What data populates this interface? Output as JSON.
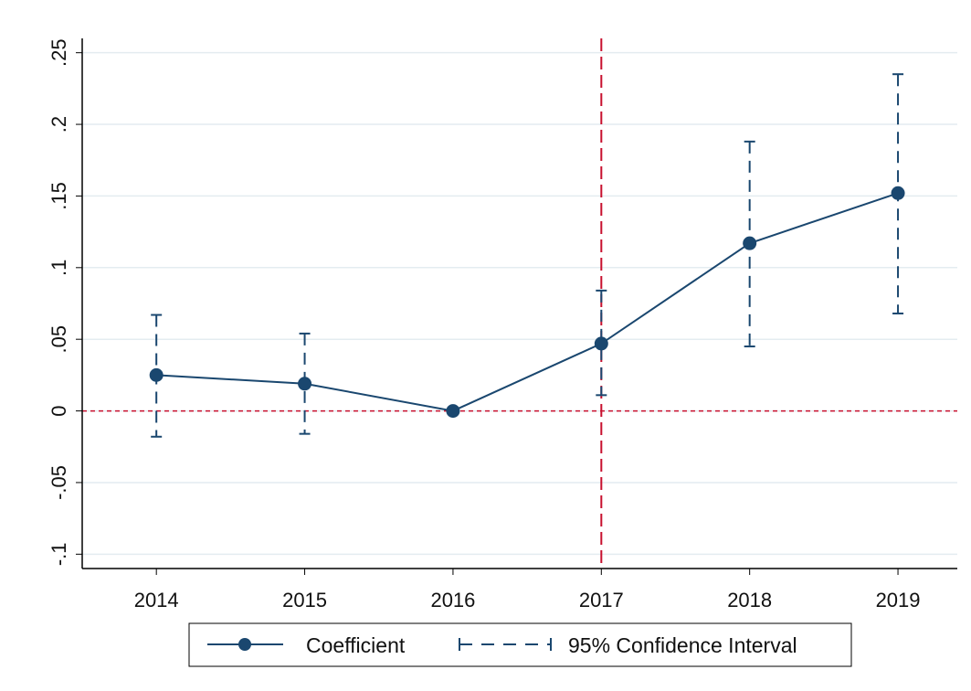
{
  "chart_data": {
    "type": "line",
    "title": "",
    "xlabel": "",
    "ylabel": "",
    "x": [
      2014,
      2015,
      2016,
      2017,
      2018,
      2019
    ],
    "x_tick_labels": [
      "2014",
      "2015",
      "2016",
      "2017",
      "2018",
      "2019"
    ],
    "xlim": [
      2013.5,
      2019.4
    ],
    "ylim": [
      -0.11,
      0.26
    ],
    "y_ticks": [
      -0.1,
      -0.05,
      0,
      0.05,
      0.1,
      0.15,
      0.2,
      0.25
    ],
    "y_tick_labels": [
      "-.1",
      "-.05",
      "0",
      ".05",
      ".1",
      ".15",
      ".2",
      ".25"
    ],
    "grid": true,
    "series": [
      {
        "name": "Coefficient",
        "values": [
          0.025,
          0.019,
          0.0,
          0.047,
          0.117,
          0.152
        ],
        "ci_lower": [
          -0.018,
          -0.016,
          0.0,
          0.011,
          0.045,
          0.068
        ],
        "ci_upper": [
          0.067,
          0.054,
          0.0,
          0.084,
          0.188,
          0.235
        ]
      }
    ],
    "reference_lines": {
      "horizontal_y": 0,
      "vertical_x": 2017
    },
    "legend": {
      "placement": "bottom",
      "entries": [
        "Coefficient",
        "95% Confidence Interval"
      ]
    },
    "colors": {
      "series": "#1a476f",
      "reference": "#c8102e",
      "grid": "#e4ecf0",
      "axis": "#000000"
    }
  }
}
